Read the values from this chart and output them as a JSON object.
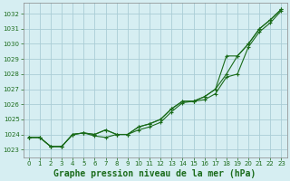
{
  "title": "Graphe pression niveau de la mer (hPa)",
  "title_fontsize": 7,
  "background_color": "#d6eef2",
  "grid_color": "#aacdd6",
  "line_color": "#1a6b1a",
  "xlim": [
    -0.5,
    23.5
  ],
  "ylim": [
    1022.5,
    1032.7
  ],
  "yticks": [
    1023,
    1024,
    1025,
    1026,
    1027,
    1028,
    1029,
    1030,
    1031,
    1032
  ],
  "xticks": [
    0,
    1,
    2,
    3,
    4,
    5,
    6,
    7,
    8,
    9,
    10,
    11,
    12,
    13,
    14,
    15,
    16,
    17,
    18,
    19,
    20,
    21,
    22,
    23
  ],
  "series1": [
    1023.8,
    1023.8,
    1023.2,
    1023.2,
    1024.0,
    1024.1,
    1024.0,
    1024.3,
    1024.0,
    1024.0,
    1024.5,
    1024.7,
    1025.0,
    1025.7,
    1026.2,
    1026.2,
    1026.5,
    1027.0,
    1028.0,
    1029.2,
    1030.0,
    1031.0,
    1031.6,
    1032.3
  ],
  "series2": [
    1023.8,
    1023.8,
    1023.2,
    1023.2,
    1024.0,
    1024.1,
    1024.0,
    1024.3,
    1024.0,
    1024.0,
    1024.5,
    1024.7,
    1025.0,
    1025.7,
    1026.2,
    1026.2,
    1026.5,
    1027.2,
    1029.2,
    1029.2,
    1030.0,
    1031.0,
    1031.6,
    1032.3
  ],
  "series3": [
    1023.8,
    1023.8,
    1023.2,
    1023.2,
    1024.0,
    1024.1,
    1023.9,
    1023.8,
    1024.0,
    1024.0,
    1024.3,
    1024.5,
    1024.8,
    1025.5,
    1026.1,
    1026.2,
    1026.3,
    1026.7,
    1027.8,
    1028.0,
    1029.8,
    1030.8,
    1031.4,
    1032.2
  ]
}
